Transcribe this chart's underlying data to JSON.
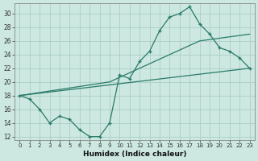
{
  "xlabel": "Humidex (Indice chaleur)",
  "ylabel": "",
  "bg_color": "#cce8e0",
  "grid_color": "#aacec6",
  "line_color": "#2a7a6a",
  "xlim": [
    -0.5,
    23.5
  ],
  "ylim": [
    11.5,
    31.5
  ],
  "xticks": [
    0,
    1,
    2,
    3,
    4,
    5,
    6,
    7,
    8,
    9,
    10,
    11,
    12,
    13,
    14,
    15,
    16,
    17,
    18,
    19,
    20,
    21,
    22,
    23
  ],
  "yticks": [
    12,
    14,
    16,
    18,
    20,
    22,
    24,
    26,
    28,
    30
  ],
  "series1_x": [
    0,
    1,
    2,
    3,
    4,
    5,
    6,
    7,
    8,
    9,
    10,
    11,
    12,
    13,
    14,
    15,
    16,
    17,
    18,
    19,
    20,
    21,
    22,
    23
  ],
  "series1_y": [
    18,
    17.5,
    16,
    14,
    15,
    14.5,
    13,
    12,
    12,
    14,
    21,
    20.5,
    23,
    24.5,
    27.5,
    29.5,
    30,
    31,
    28.5,
    27,
    25,
    24.5,
    23.5,
    22
  ],
  "series2_x": [
    0,
    23
  ],
  "series2_y": [
    18,
    22
  ],
  "series3_x": [
    0,
    9,
    18,
    23
  ],
  "series3_y": [
    18,
    20,
    26,
    27
  ]
}
